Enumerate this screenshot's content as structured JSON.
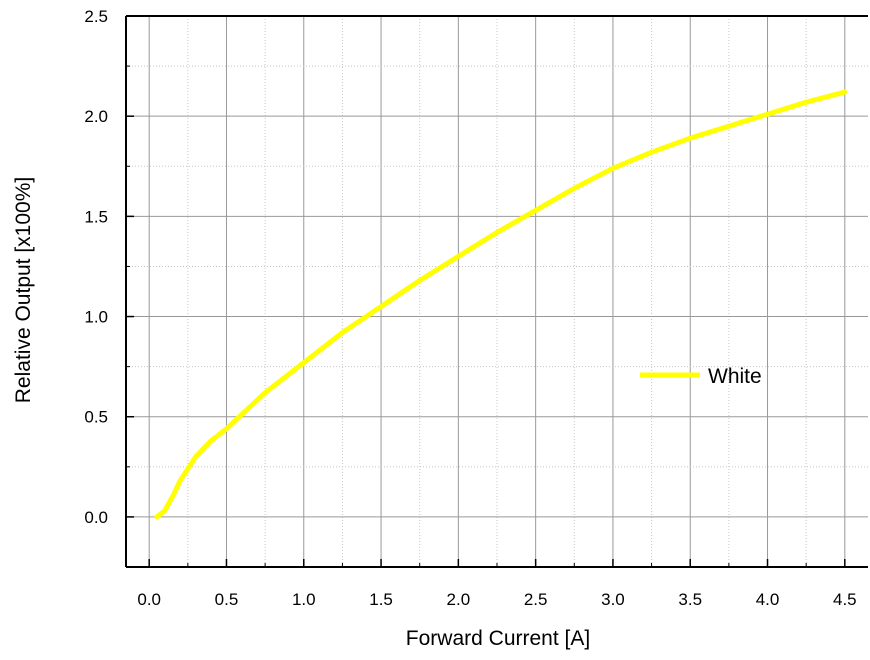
{
  "chart_data": {
    "type": "line",
    "title": "",
    "xlabel": "Forward Current [A]",
    "ylabel": "Relative Output [x100%]",
    "xlim": [
      -0.15,
      4.65
    ],
    "ylim": [
      -0.25,
      2.5
    ],
    "x_ticks": [
      "0.0",
      "0.5",
      "1.0",
      "1.5",
      "2.0",
      "2.5",
      "3.0",
      "3.5",
      "4.0",
      "4.5"
    ],
    "y_ticks": [
      "0.0",
      "0.5",
      "1.0",
      "1.5",
      "2.0",
      "2.5"
    ],
    "grid": true,
    "legend_position": "center-right",
    "series": [
      {
        "name": "White",
        "color": "#ffff00",
        "x": [
          0.05,
          0.1,
          0.15,
          0.2,
          0.3,
          0.4,
          0.5,
          0.75,
          1.0,
          1.25,
          1.5,
          1.75,
          2.0,
          2.25,
          2.5,
          2.75,
          3.0,
          3.25,
          3.5,
          3.75,
          4.0,
          4.25,
          4.5
        ],
        "y": [
          0.0,
          0.03,
          0.1,
          0.18,
          0.3,
          0.38,
          0.44,
          0.62,
          0.77,
          0.92,
          1.05,
          1.18,
          1.3,
          1.42,
          1.53,
          1.64,
          1.74,
          1.82,
          1.89,
          1.95,
          2.01,
          2.07,
          2.12
        ]
      }
    ]
  }
}
